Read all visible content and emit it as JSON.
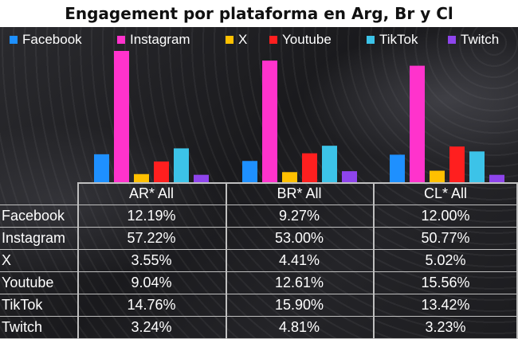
{
  "title": "Engagement por plataforma en Arg, Br y Cl",
  "colors": {
    "Facebook": "#1e90ff",
    "Instagram": "#ff33cc",
    "X": "#ffc000",
    "Youtube": "#ff1f1f",
    "TikTok": "#3cc3e8",
    "Twitch": "#8e44ec"
  },
  "chart_data": {
    "type": "bar",
    "title": "Engagement por plataforma en Arg, Br y Cl",
    "categories": [
      "AR* All",
      "BR* All",
      "CL* All"
    ],
    "series": [
      {
        "name": "Facebook",
        "values": [
          12.19,
          9.27,
          12.0
        ]
      },
      {
        "name": "Instagram",
        "values": [
          57.22,
          53.0,
          50.77
        ]
      },
      {
        "name": "X",
        "values": [
          3.55,
          4.41,
          5.02
        ]
      },
      {
        "name": "Youtube",
        "values": [
          9.04,
          12.61,
          15.56
        ]
      },
      {
        "name": "TikTok",
        "values": [
          14.76,
          15.9,
          13.42
        ]
      },
      {
        "name": "Twitch",
        "values": [
          3.24,
          4.81,
          3.23
        ]
      }
    ],
    "legend": "top",
    "grid": false
  },
  "table": {
    "headers": [
      "AR* All",
      "BR* All",
      "CL* All"
    ],
    "rows": [
      {
        "label": "Facebook",
        "values": [
          "12.19%",
          "9.27%",
          "12.00%"
        ]
      },
      {
        "label": "Instagram",
        "values": [
          "57.22%",
          "53.00%",
          "50.77%"
        ]
      },
      {
        "label": "X",
        "values": [
          "3.55%",
          "4.41%",
          "5.02%"
        ]
      },
      {
        "label": "Youtube",
        "values": [
          "9.04%",
          "12.61%",
          "15.56%"
        ]
      },
      {
        "label": "TikTok",
        "values": [
          "14.76%",
          "15.90%",
          "13.42%"
        ]
      },
      {
        "label": "Twitch",
        "values": [
          "3.24%",
          "4.81%",
          "3.23%"
        ]
      }
    ]
  }
}
